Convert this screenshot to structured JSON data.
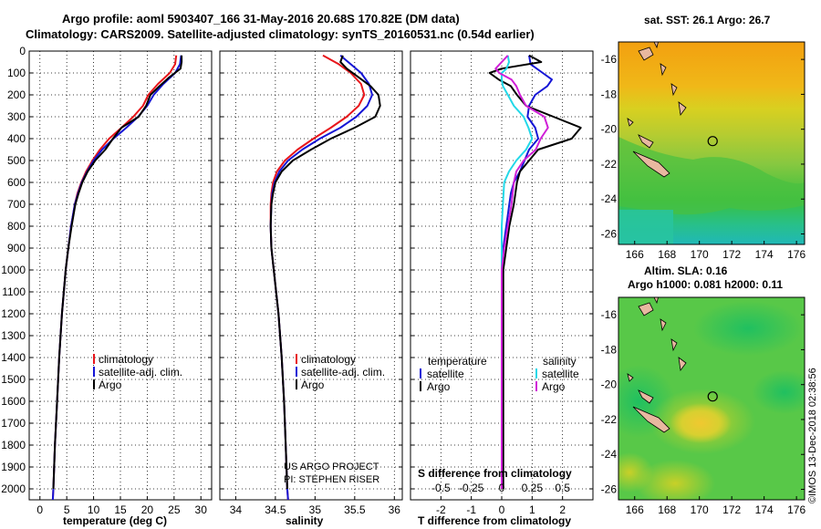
{
  "header": {
    "line1": "Argo profile: aoml 5903407_166 31-May-2016 20.68S 170.82E (DM data)",
    "line2": "Climatology: CARS2009. Satellite-adjusted climatology: synTS_20160531.nc (0.54d earlier)"
  },
  "colors": {
    "climatology": "#e8161b",
    "satellite": "#1515d6",
    "argo": "#000000",
    "satellite_s": "#22d8e8",
    "argo_s": "#d020d8"
  },
  "depth_axis": {
    "range": [
      2050,
      0
    ],
    "ticks": [
      0,
      100,
      200,
      300,
      400,
      500,
      600,
      700,
      800,
      900,
      1000,
      1100,
      1200,
      1300,
      1400,
      1500,
      1600,
      1700,
      1800,
      1900,
      2000
    ]
  },
  "chart_data": [
    {
      "type": "line",
      "name": "temperature",
      "xlabel": "temperature (deg C)",
      "xlim": [
        -2,
        32
      ],
      "xticks": [
        "0",
        "5",
        "10",
        "15",
        "20",
        "25",
        "30"
      ],
      "xtick_values": [
        0,
        5,
        10,
        15,
        20,
        25,
        30
      ],
      "legend": [
        "climatology",
        "satellite-adj. clim.",
        "Argo"
      ],
      "series": [
        {
          "name": "climatology",
          "color": "#e8161b",
          "depth": [
            20,
            60,
            100,
            150,
            200,
            250,
            300,
            350,
            400,
            450,
            500,
            550,
            600,
            650,
            700,
            800,
            900,
            1000,
            1200,
            1400,
            1600,
            1800,
            2000,
            2050
          ],
          "values": [
            25.4,
            25.2,
            24.2,
            22.0,
            20.2,
            19.2,
            17.4,
            15.2,
            12.9,
            11.2,
            9.8,
            8.6,
            7.7,
            7.0,
            6.5,
            5.8,
            5.3,
            4.8,
            4.1,
            3.6,
            3.2,
            2.8,
            2.5,
            2.4
          ]
        },
        {
          "name": "satellite-adj. clim.",
          "color": "#1515d6",
          "depth": [
            20,
            60,
            100,
            150,
            200,
            250,
            300,
            350,
            400,
            450,
            500,
            550,
            600,
            650,
            700,
            800,
            900,
            1000,
            1200,
            1400,
            1600,
            1800,
            2000,
            2050
          ],
          "values": [
            26.3,
            26.1,
            25.2,
            23.0,
            21.2,
            20.0,
            18.3,
            16.1,
            13.7,
            11.6,
            10.0,
            8.8,
            7.8,
            7.1,
            6.5,
            5.8,
            5.3,
            4.8,
            4.1,
            3.6,
            3.2,
            2.8,
            2.5,
            2.4
          ]
        },
        {
          "name": "Argo",
          "color": "#000000",
          "depth": [
            20,
            50,
            80,
            120,
            160,
            200,
            250,
            300,
            350,
            400,
            450,
            500,
            550,
            600,
            650,
            700,
            800,
            900,
            1000,
            1200,
            1400,
            1600,
            1800,
            2000
          ],
          "values": [
            26.4,
            26.4,
            26.2,
            24.1,
            22.3,
            20.6,
            19.8,
            18.4,
            15.2,
            13.6,
            12.2,
            10.3,
            8.9,
            7.9,
            7.2,
            6.6,
            5.9,
            5.3,
            4.8,
            4.1,
            3.6,
            3.2,
            2.8,
            2.5
          ]
        }
      ]
    },
    {
      "type": "line",
      "name": "salinity",
      "xlabel": "salinity",
      "xlim": [
        33.8,
        36.1
      ],
      "xticks": [
        "34",
        "34.5",
        "35",
        "35.5",
        "36"
      ],
      "xtick_values": [
        34,
        34.5,
        35,
        35.5,
        36
      ],
      "legend": [
        "climatology",
        "satellite-adj. clim.",
        "Argo"
      ],
      "credits": [
        "US ARGO PROJECT",
        "PI: STEPHEN RISER"
      ],
      "series": [
        {
          "name": "climatology",
          "color": "#e8161b",
          "depth": [
            20,
            60,
            100,
            150,
            200,
            250,
            300,
            350,
            400,
            450,
            500,
            550,
            600,
            650,
            700,
            800,
            900,
            1000,
            1200,
            1400,
            1600,
            1800,
            2000,
            2050
          ],
          "values": [
            35.1,
            35.3,
            35.45,
            35.58,
            35.62,
            35.55,
            35.4,
            35.2,
            34.98,
            34.78,
            34.62,
            34.52,
            34.47,
            34.45,
            34.44,
            34.44,
            34.45,
            34.48,
            34.54,
            34.58,
            34.61,
            34.63,
            34.65,
            34.66
          ]
        },
        {
          "name": "satellite-adj. clim.",
          "color": "#1515d6",
          "depth": [
            20,
            60,
            100,
            150,
            200,
            250,
            300,
            350,
            400,
            450,
            500,
            550,
            600,
            650,
            700,
            800,
            900,
            1000,
            1200,
            1400,
            1600,
            1800,
            2000,
            2050
          ],
          "values": [
            35.32,
            35.45,
            35.58,
            35.68,
            35.72,
            35.66,
            35.52,
            35.32,
            35.06,
            34.84,
            34.66,
            34.55,
            34.49,
            34.46,
            34.45,
            34.44,
            34.45,
            34.48,
            34.54,
            34.58,
            34.61,
            34.63,
            34.65,
            34.66
          ]
        },
        {
          "name": "Argo",
          "color": "#000000",
          "depth": [
            20,
            50,
            80,
            120,
            160,
            200,
            250,
            300,
            350,
            400,
            450,
            500,
            550,
            600,
            650,
            700,
            800,
            900,
            1000,
            1200,
            1400,
            1600,
            1800,
            2000
          ],
          "values": [
            35.35,
            35.32,
            35.4,
            35.55,
            35.7,
            35.8,
            35.82,
            35.76,
            35.5,
            35.2,
            34.95,
            34.72,
            34.58,
            34.5,
            34.47,
            34.45,
            34.44,
            34.45,
            34.48,
            34.54,
            34.58,
            34.61,
            34.63,
            34.65
          ]
        }
      ]
    },
    {
      "type": "line",
      "name": "differences",
      "xlabel": "T difference from climatology",
      "xlim": [
        -3,
        3
      ],
      "xticks": [
        "-2",
        "-1",
        "0",
        "1",
        "2"
      ],
      "xtick_values": [
        -2,
        -1,
        0,
        1,
        2
      ],
      "top_axis_label": "S difference from climatology",
      "top_xticks": [
        "-0.5",
        "-0.25",
        "0",
        "0.25",
        "0.5"
      ],
      "top_xtick_values": [
        -0.5,
        -0.25,
        0,
        0.25,
        0.5
      ],
      "top_xlim": [
        -0.75,
        0.75
      ],
      "legend_left_title": "temperature",
      "legend_right_title": "salinity",
      "legend_left": [
        "satellite",
        "Argo"
      ],
      "legend_right": [
        "satellite",
        "Argo"
      ],
      "series": [
        {
          "name": "T satellite",
          "axis": "T",
          "color": "#1515d6",
          "depth": [
            20,
            60,
            100,
            130,
            160,
            200,
            250,
            300,
            350,
            400,
            450,
            500,
            550,
            600,
            650,
            700,
            800,
            900,
            1000,
            1100,
            1200,
            1400,
            1600,
            1800,
            2000
          ],
          "values": [
            0.9,
            0.95,
            1.35,
            1.65,
            1.5,
            1.1,
            0.9,
            0.85,
            1.1,
            1.2,
            0.9,
            0.75,
            0.6,
            0.4,
            0.3,
            0.25,
            0.15,
            0.05,
            0.05,
            0.02,
            0.0,
            0.0,
            0.0,
            0.0,
            0.0
          ]
        },
        {
          "name": "T Argo",
          "axis": "T",
          "color": "#000000",
          "depth": [
            20,
            50,
            80,
            100,
            130,
            160,
            200,
            250,
            300,
            350,
            400,
            450,
            500,
            550,
            600,
            650,
            700,
            800,
            900,
            1000,
            1100,
            1200,
            1400,
            1600,
            1800,
            2000
          ],
          "values": [
            0.9,
            1.3,
            0.0,
            -0.4,
            -0.1,
            0.3,
            0.5,
            0.8,
            1.7,
            2.6,
            2.3,
            1.2,
            0.9,
            0.6,
            0.5,
            0.45,
            0.4,
            0.25,
            0.15,
            0.05,
            0.05,
            0.05,
            0.05,
            0.05,
            0.05,
            0.05
          ]
        },
        {
          "name": "S satellite",
          "axis": "S",
          "color": "#22d8e8",
          "depth": [
            20,
            50,
            80,
            100,
            130,
            160,
            200,
            250,
            300,
            350,
            400,
            450,
            500,
            550,
            600,
            700,
            800,
            900,
            1000,
            1200,
            1400,
            1600,
            1800,
            2000
          ],
          "values": [
            0.05,
            0.06,
            0.04,
            0.0,
            0.0,
            0.01,
            0.05,
            0.1,
            0.18,
            0.22,
            0.25,
            0.2,
            0.12,
            0.06,
            0.02,
            0.01,
            0.0,
            0.0,
            0.0,
            0.0,
            0.0,
            0.0,
            0.0,
            0.0
          ]
        },
        {
          "name": "S Argo",
          "axis": "S",
          "color": "#d020d8",
          "depth": [
            20,
            50,
            80,
            100,
            130,
            160,
            200,
            250,
            300,
            350,
            400,
            450,
            500,
            550,
            600,
            700,
            800,
            900,
            1000,
            1200,
            1400,
            1600,
            1800,
            2000
          ],
          "values": [
            0.05,
            0.0,
            -0.05,
            -0.02,
            0.08,
            0.12,
            0.15,
            0.2,
            0.35,
            0.38,
            0.32,
            0.28,
            0.18,
            0.12,
            0.1,
            0.08,
            0.05,
            0.02,
            0.0,
            0.0,
            0.0,
            0.0,
            0.0,
            0.0
          ]
        }
      ]
    },
    {
      "type": "heatmap",
      "name": "sst-map",
      "title": "sat. SST: 26.1 Argo: 26.7",
      "xticks": [
        "166",
        "168",
        "170",
        "172",
        "174",
        "176"
      ],
      "xtick_values": [
        166,
        168,
        170,
        172,
        174,
        176
      ],
      "yticks": [
        "-16",
        "-18",
        "-20",
        "-22",
        "-24",
        "-26"
      ],
      "ytick_values": [
        -16,
        -18,
        -20,
        -22,
        -24,
        -26
      ],
      "xlim": [
        165,
        176.5
      ],
      "ylim": [
        -26.6,
        -15
      ]
    },
    {
      "type": "heatmap",
      "name": "sla-map",
      "title_line1": "Altim. SLA: 0.16",
      "title_line2": "Argo h1000: 0.081 h2000: 0.11",
      "xticks": [
        "166",
        "168",
        "170",
        "172",
        "174",
        "176"
      ],
      "xtick_values": [
        166,
        168,
        170,
        172,
        174,
        176
      ],
      "yticks": [
        "-16",
        "-18",
        "-20",
        "-22",
        "-24",
        "-26"
      ],
      "ytick_values": [
        -16,
        -18,
        -20,
        -22,
        -24,
        -26
      ],
      "xlim": [
        165,
        176.5
      ],
      "ylim": [
        -26.6,
        -15
      ]
    }
  ],
  "float_position": {
    "lat": -20.68,
    "lon": 170.82
  },
  "watermark": "©IMOS 13-Dec-2018 02:38:56"
}
